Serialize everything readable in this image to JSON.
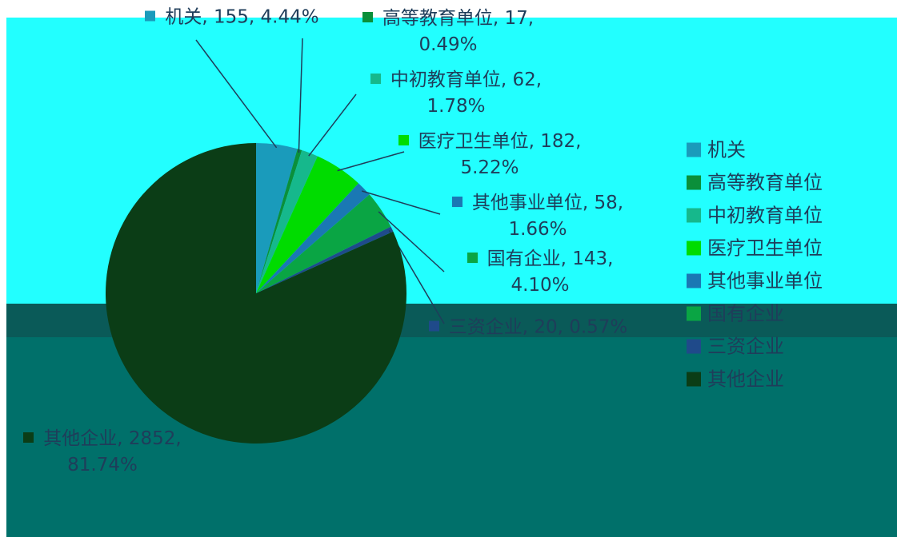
{
  "chart_data": {
    "type": "pie",
    "categories": [
      "机关",
      "高等教育单位",
      "中初教育单位",
      "医疗卫生单位",
      "其他事业单位",
      "国有企业",
      "三资企业",
      "其他企业"
    ],
    "values": [
      155,
      17,
      62,
      182,
      58,
      143,
      20,
      2852
    ],
    "value_labels": [
      "机关, 155, 4.44%",
      "高等教育单位, 17, 0.49%",
      "中初教育单位, 62, 1.78%",
      "医疗卫生单位, 182, 5.22%",
      "其他事业单位, 58, 1.66%",
      "国有企业, 143, 4.10%",
      "三资企业, 20, 0.57%",
      "其他企业, 2852, 81.74%"
    ],
    "colors": [
      "#1a9bbb",
      "#0b8f3a",
      "#16b88c",
      "#00dc00",
      "#1a78b4",
      "#0aa544",
      "#1f4a8a",
      "#0b3d16"
    ],
    "legend": "right"
  }
}
